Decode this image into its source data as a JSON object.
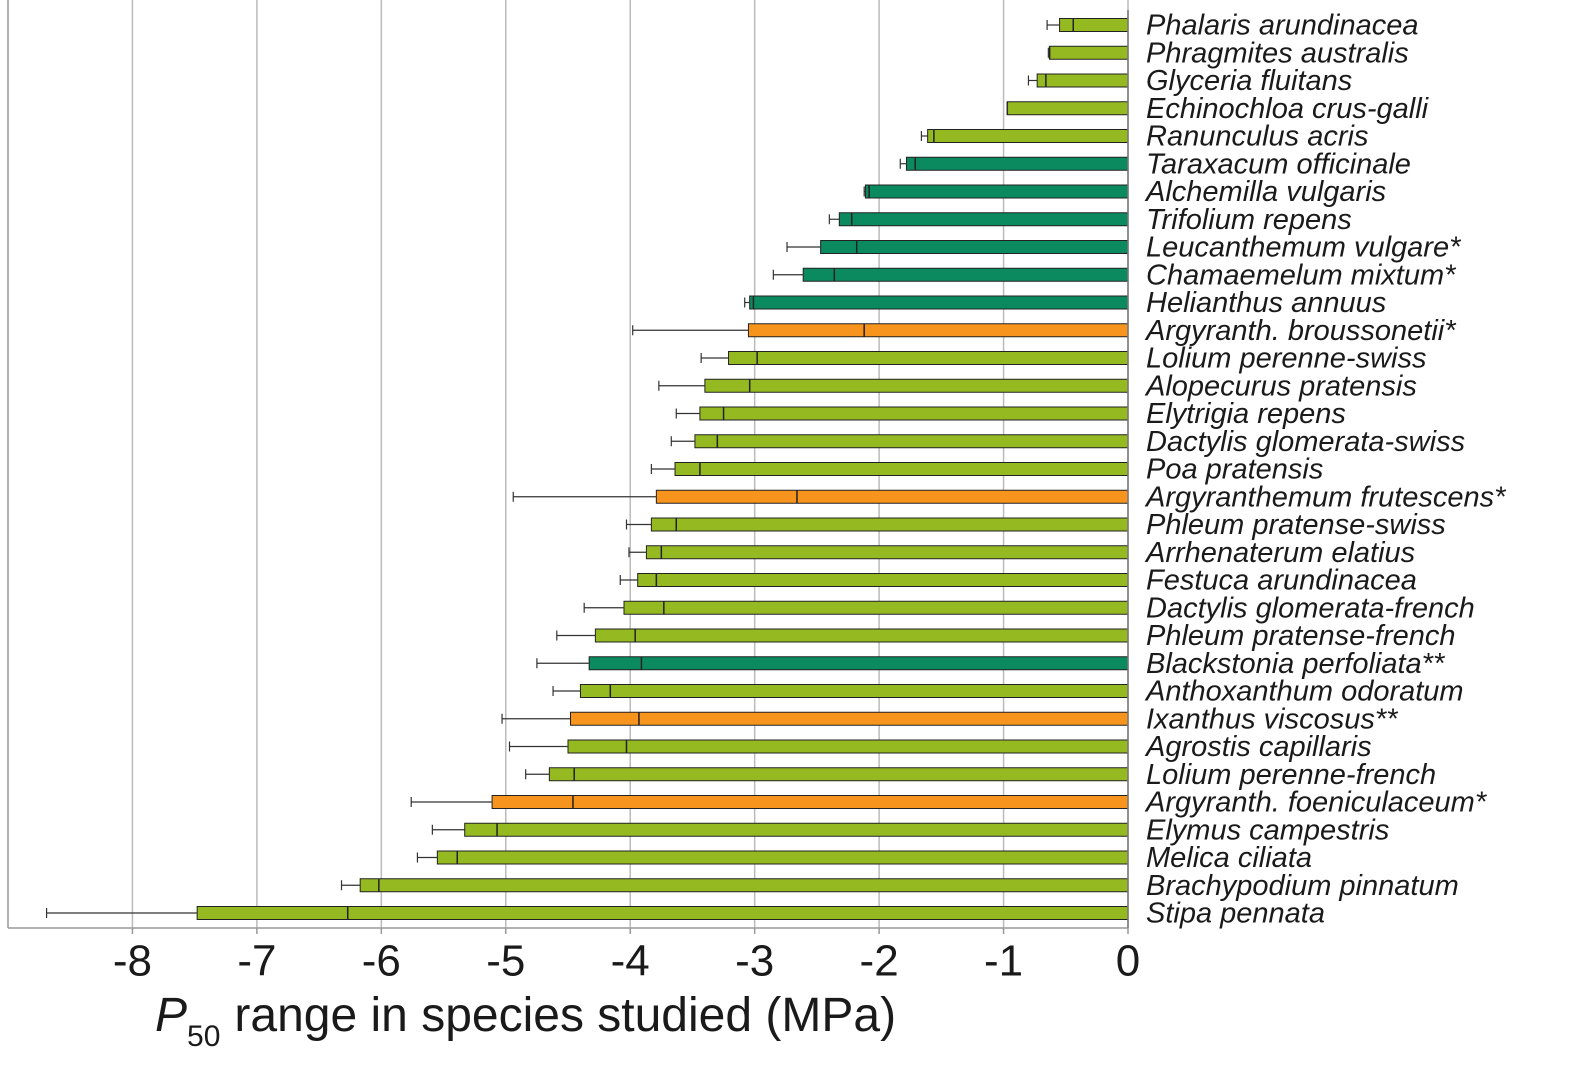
{
  "chart_data": {
    "type": "range-bar",
    "categories": [
      "Phalaris arundinacea",
      "Phragmites australis",
      "Glyceria fluitans",
      "Echinochloa crus-galli",
      "Ranunculus acris",
      "Taraxacum officinale",
      "Alchemilla vulgaris",
      "Trifolium repens",
      "Leucanthemum vulgare*",
      "Chamaemelum mixtum*",
      "Helianthus annuus",
      "Argyranth. broussonetii*",
      "Lolium perenne-swiss",
      "Alopecurus pratensis",
      "Elytrigia repens",
      "Dactylis glomerata-swiss",
      "Poa pratensis",
      "Argyranthemum frutescens*",
      "Phleum pratense-swiss",
      "Arrhenaterum elatius",
      "Festuca arundinacea",
      "Dactylis glomerata-french",
      "Phleum pratense-french",
      "Blackstonia perfoliata**",
      "Anthoxanthum odoratum",
      "Ixanthus viscosus**",
      "Agrostis capillaris",
      "Lolium perenne-french",
      "Argyranth. foeniculaceum*",
      "Elymus campestris",
      "Melica ciliata",
      "Brachypodium pinnatum",
      "Stipa pennata"
    ],
    "values": [
      -0.55,
      -0.63,
      -0.73,
      -0.97,
      -1.61,
      -1.78,
      -2.11,
      -2.32,
      -2.47,
      -2.61,
      -3.04,
      -3.05,
      -3.21,
      -3.4,
      -3.44,
      -3.48,
      -3.64,
      -3.79,
      -3.83,
      -3.87,
      -3.94,
      -4.05,
      -4.28,
      -4.33,
      -4.4,
      -4.48,
      -4.5,
      -4.65,
      -5.11,
      -5.33,
      -5.55,
      -6.17,
      -7.48
    ],
    "inner": [
      -0.44,
      -0.63,
      -0.66,
      -0.97,
      -1.56,
      -1.71,
      -2.08,
      -2.22,
      -2.18,
      -2.36,
      -3.01,
      -2.12,
      -2.98,
      -3.04,
      -3.25,
      -3.3,
      -3.44,
      -2.66,
      -3.63,
      -3.75,
      -3.79,
      -3.73,
      -3.96,
      -3.91,
      -4.16,
      -3.93,
      -4.03,
      -4.45,
      -4.46,
      -5.07,
      -5.39,
      -6.02,
      -6.27
    ],
    "error_low": [
      -0.65,
      -0.64,
      -0.8,
      -0.97,
      -1.66,
      -1.83,
      -2.12,
      -2.4,
      -2.74,
      -2.85,
      -3.08,
      -3.98,
      -3.43,
      -3.77,
      -3.63,
      -3.67,
      -3.83,
      -4.94,
      -4.03,
      -4.01,
      -4.08,
      -4.37,
      -4.59,
      -4.75,
      -4.62,
      -5.03,
      -4.97,
      -4.84,
      -5.76,
      -5.59,
      -5.71,
      -6.32,
      -8.69
    ],
    "colors": [
      "#95b921",
      "#95b921",
      "#95b921",
      "#95b921",
      "#95b921",
      "#0b8a5f",
      "#0b8a5f",
      "#0b8a5f",
      "#0b8a5f",
      "#0b8a5f",
      "#0b8a5f",
      "#f7941d",
      "#95b921",
      "#95b921",
      "#95b921",
      "#95b921",
      "#95b921",
      "#f7941d",
      "#95b921",
      "#95b921",
      "#95b921",
      "#95b921",
      "#95b921",
      "#0b8a5f",
      "#95b921",
      "#f7941d",
      "#95b921",
      "#95b921",
      "#f7941d",
      "#95b921",
      "#95b921",
      "#95b921",
      "#95b921"
    ],
    "xlabel": {
      "symbol": "P",
      "subscript": "50",
      "text": "range in species studied (MPa)"
    },
    "xlim": [
      -9,
      0
    ],
    "xticks": [
      -8,
      -7,
      -6,
      -5,
      -4,
      -3,
      -2,
      -1,
      0
    ],
    "grid": true
  }
}
